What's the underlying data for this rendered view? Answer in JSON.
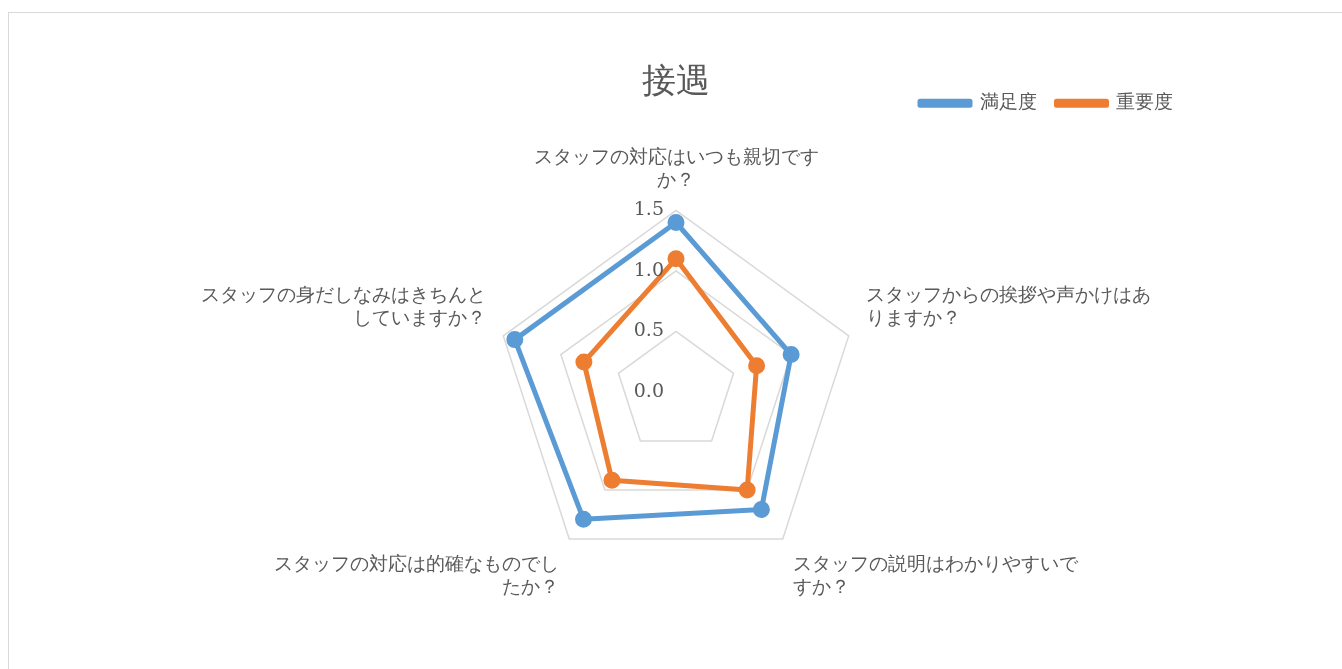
{
  "chart_data": {
    "type": "radar",
    "title": "接遇",
    "categories": [
      "スタッフの対応はいつも親切ですか？",
      "スタッフからの挨拶や声かけはありますか？",
      "スタッフの説明はわかりやすいですか？",
      "スタッフの対応は的確なものでしたか？",
      "スタッフの身だしなみはきちんとしていますか？"
    ],
    "series": [
      {
        "name": "満足度",
        "color": "#5b9bd5",
        "values": [
          1.4,
          1.0,
          1.2,
          1.3,
          1.4
        ]
      },
      {
        "name": "重要度",
        "color": "#ed7d31",
        "values": [
          1.1,
          0.7,
          1.0,
          0.9,
          0.8
        ]
      }
    ],
    "ylim": [
      0,
      1.5
    ],
    "yticks": [
      {
        "value": 0,
        "label": "0.0"
      },
      0.5,
      {
        "value": 1,
        "label": "1.0"
      },
      1.5
    ],
    "legend": "top right",
    "marker": "circle",
    "grid": true
  }
}
